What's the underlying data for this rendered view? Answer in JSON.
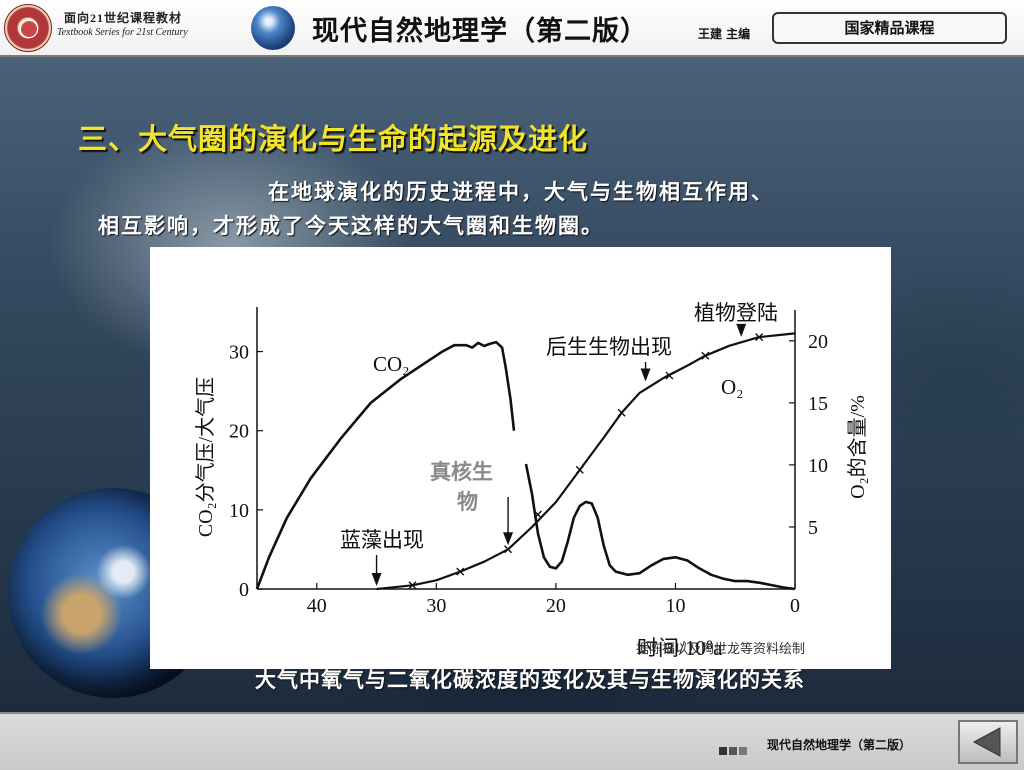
{
  "header": {
    "series_cn": "面向21世纪课程教材",
    "series_en": "Textbook Series for 21st Century",
    "book_title": "现代自然地理学（第二版）",
    "editor": "王建 主编",
    "badge": "国家精品课程"
  },
  "slide": {
    "heading": "三、大气圈的演化与生命的起源及进化",
    "body_line1": "在地球演化的历史进程中，大气与生物相互作用、",
    "body_line2": "相互影响，才形成了今天这样的大气圈和生物圈。",
    "caption": "大气中氧气与二氧化碳浓度的变化及其与生物演化的关系"
  },
  "chart_data": {
    "type": "line",
    "xlabel": "时间/10⁸a",
    "ylabel_left": "CO₂分气压/大气压",
    "ylabel_right": "O₂的含量/%",
    "x_reversed": true,
    "xlim": [
      45,
      0
    ],
    "ylim_left": [
      0,
      35
    ],
    "ylim_right": [
      0,
      22
    ],
    "x_ticks": [
      40,
      30,
      20,
      10,
      0
    ],
    "y_ticks_left": [
      0,
      10,
      20,
      30
    ],
    "y_ticks_right": [
      5,
      10,
      15,
      20
    ],
    "grid": false,
    "series": [
      {
        "name": "CO₂",
        "axis": "left",
        "segments": [
          [
            [
              45,
              0
            ],
            [
              44,
              4
            ],
            [
              42.5,
              9
            ],
            [
              40.5,
              14
            ],
            [
              38,
              19
            ],
            [
              35.5,
              23.5
            ],
            [
              33,
              26.5
            ],
            [
              31,
              28.5
            ],
            [
              29.5,
              30
            ],
            [
              28.5,
              30.8
            ],
            [
              27.5,
              30.8
            ],
            [
              27,
              30.5
            ],
            [
              26.5,
              31.1
            ],
            [
              26,
              30.7
            ],
            [
              25.5,
              31
            ],
            [
              25,
              31.2
            ],
            [
              24.5,
              30.5
            ],
            [
              24.2,
              28
            ],
            [
              23.8,
              24
            ],
            [
              23.5,
              20
            ]
          ],
          [
            [
              22.5,
              15.8
            ],
            [
              22,
              12
            ],
            [
              21.5,
              7
            ],
            [
              21,
              4
            ],
            [
              20.5,
              2.8
            ],
            [
              20,
              2.6
            ],
            [
              19.5,
              3.5
            ],
            [
              19,
              6
            ],
            [
              18.5,
              9
            ],
            [
              18,
              10.5
            ],
            [
              17.5,
              11
            ],
            [
              17,
              10.8
            ],
            [
              16.5,
              9
            ],
            [
              16,
              5.5
            ],
            [
              15.5,
              3
            ],
            [
              15,
              2.2
            ],
            [
              14,
              1.8
            ],
            [
              13,
              2
            ],
            [
              12,
              3
            ],
            [
              11,
              3.8
            ],
            [
              10,
              4
            ],
            [
              9,
              3.6
            ],
            [
              8,
              2.6
            ],
            [
              7,
              1.8
            ],
            [
              6,
              1.3
            ],
            [
              5,
              1
            ],
            [
              4,
              1
            ],
            [
              3,
              0.8
            ],
            [
              2,
              0.5
            ],
            [
              1,
              0.2
            ],
            [
              0,
              0
            ]
          ]
        ]
      },
      {
        "name": "O₂",
        "axis": "right",
        "points": [
          [
            35,
            0
          ],
          [
            32,
            0.3
          ],
          [
            30,
            0.7
          ],
          [
            28,
            1.4
          ],
          [
            26,
            2.2
          ],
          [
            24,
            3.2
          ],
          [
            22,
            5
          ],
          [
            20,
            7
          ],
          [
            18,
            9.6
          ],
          [
            16,
            12.2
          ],
          [
            14.5,
            14.2
          ],
          [
            13,
            15.8
          ],
          [
            11,
            17
          ],
          [
            9,
            18
          ],
          [
            7.5,
            18.8
          ],
          [
            5.5,
            19.6
          ],
          [
            3,
            20.3
          ],
          [
            1,
            20.5
          ],
          [
            0,
            20.6
          ]
        ],
        "markers": [
          [
            32,
            0.3
          ],
          [
            28,
            1.4
          ],
          [
            24,
            3.2
          ],
          [
            21.5,
            6
          ],
          [
            18,
            9.6
          ],
          [
            14.5,
            14.2
          ],
          [
            10.5,
            17.2
          ],
          [
            7.5,
            18.8
          ],
          [
            3,
            20.3
          ]
        ]
      }
    ],
    "annotations": [
      {
        "text": "蓝藻出现",
        "x": 35,
        "arrow_to_y": 0
      },
      {
        "text": "真核生物",
        "x": 24,
        "arrow_to_y": 3.2
      },
      {
        "text": "后生生物出现",
        "x": 12.5,
        "arrow_to_y": 16.4
      },
      {
        "text": "植物登陆",
        "x": 4.5,
        "arrow_to_y": 20
      }
    ],
    "series_labels": {
      "co2": "CO₂",
      "o2": "O₂"
    },
    "source_note": "据陈福以及陶世龙等资料绘制"
  },
  "footer": {
    "title": "现代自然地理学（第二版）"
  },
  "icons": {
    "logo": "university-seal-icon",
    "globe": "globe-icon",
    "nav_back": "back-arrow-icon"
  },
  "colors": {
    "heading": "#f2e42a",
    "body_text": "#ffffff",
    "chart_ink": "#111111"
  }
}
